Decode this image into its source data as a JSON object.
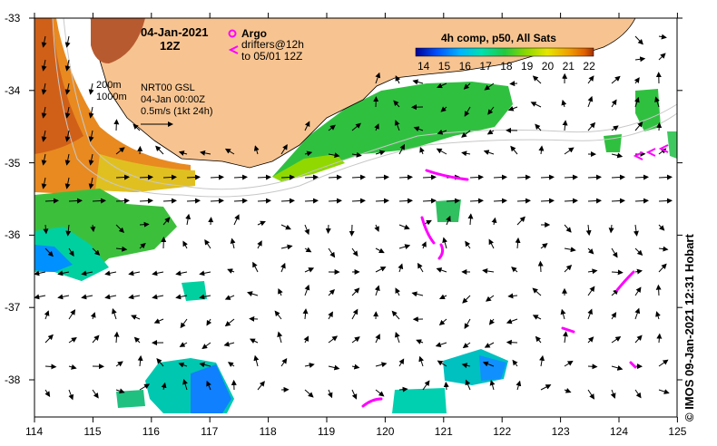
{
  "map": {
    "date": "04-Jan-2021",
    "time": "12Z",
    "argo_label": "Argo",
    "drifters_line1": "drifters@12h",
    "drifters_line2": "to 05/01 12Z",
    "contour_labels": [
      "200m",
      "1000m"
    ],
    "current_info": [
      "NRT00 GSL",
      "04-Jan 00:00Z",
      "0.5m/s (1kt 24h)"
    ],
    "colorbar_title": "4h comp, p50, All Sats",
    "colorbar_ticks": [
      "14",
      "15",
      "16",
      "17",
      "18",
      "19",
      "20",
      "21",
      "22"
    ],
    "lat_ticks": [
      "-33",
      "-34",
      "-35",
      "-36",
      "-37",
      "-38"
    ],
    "lon_ticks": [
      "114",
      "115",
      "116",
      "117",
      "118",
      "119",
      "120",
      "121",
      "122",
      "123",
      "124",
      "125"
    ],
    "credit": "© IMOS 09-Jan-2021 12:31 Hobart",
    "colors": {
      "land": "#f7c491",
      "argo": "#ff00ff",
      "sst_scale": [
        "#000096",
        "#0050ff",
        "#00b4ff",
        "#00e0b0",
        "#20c840",
        "#8cd800",
        "#e6e600",
        "#f0a000",
        "#e06000",
        "#a03000"
      ]
    }
  }
}
